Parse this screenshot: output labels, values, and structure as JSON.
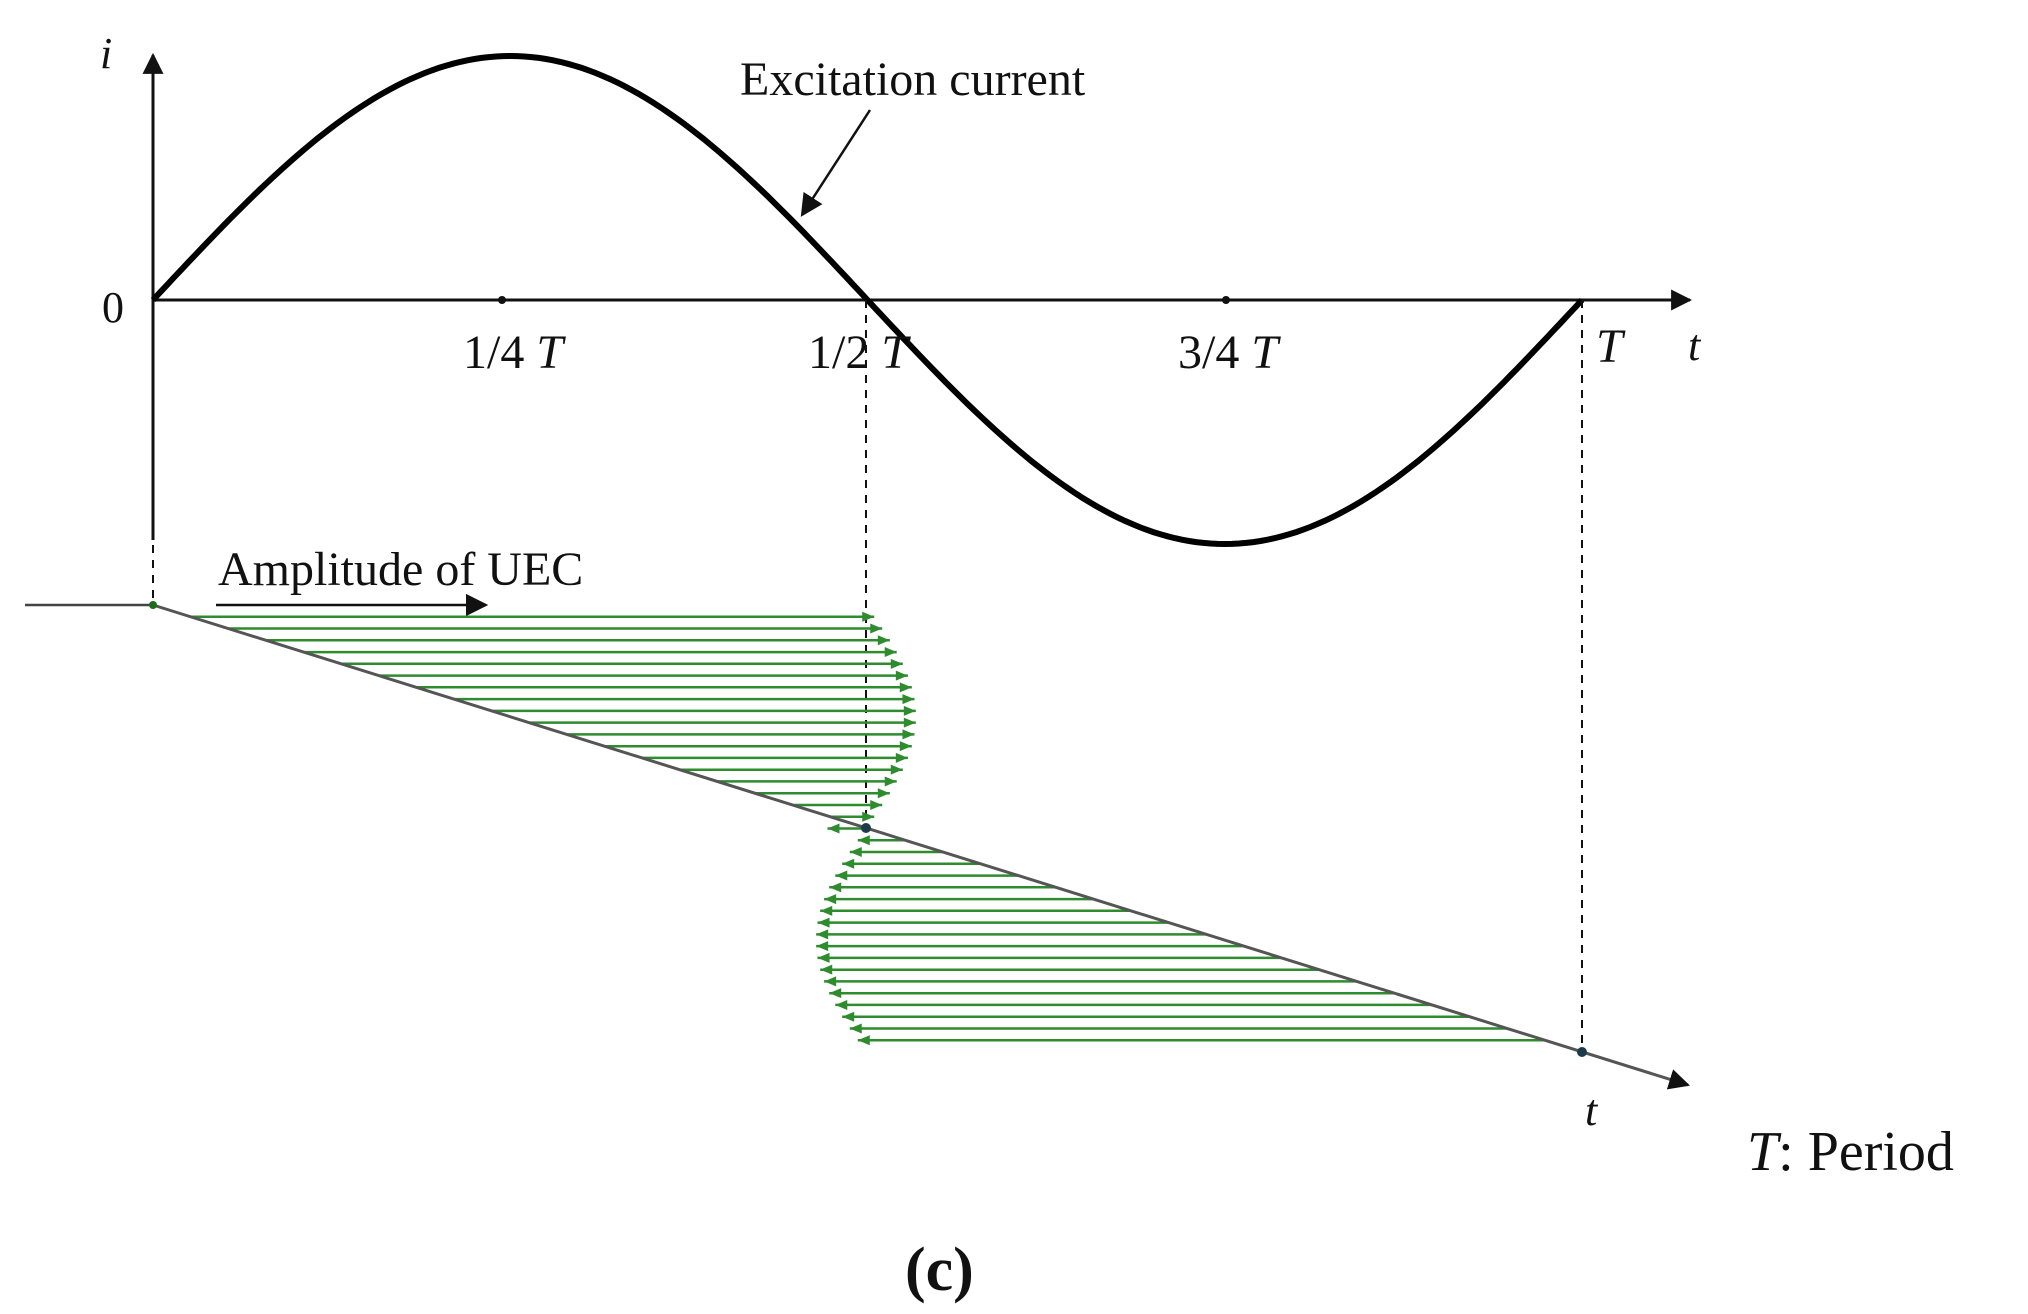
{
  "figure": {
    "panel_label": "(c)",
    "y_axis_label": "i",
    "t_axis_label": "t",
    "t_axis_label_bottom": "t",
    "origin_label": "0",
    "curve_annotation": "Excitation current",
    "uec_label": "Amplitude of UEC",
    "tick_labels": [
      {
        "num": "1/4",
        "sym": "T"
      },
      {
        "num": "1/2",
        "sym": "T"
      },
      {
        "num": "3/4",
        "sym": "T"
      },
      {
        "num": "",
        "sym": "T"
      }
    ],
    "legend": {
      "sym": "T",
      "text": ": Period"
    }
  },
  "colors": {
    "ink": "#111111",
    "arrows": "#2e8b2e",
    "axis_diag": "#555555"
  },
  "chart_data": {
    "type": "line",
    "title": "",
    "xlabel": "t",
    "ylabel": "i",
    "x_ticks": [
      "1/4 T",
      "1/2 T",
      "3/4 T",
      "T"
    ],
    "series": [
      {
        "name": "Excitation current",
        "function": "sine",
        "x": [
          0,
          0.25,
          0.5,
          0.75,
          1
        ],
        "y": [
          0,
          1,
          0,
          -1,
          0
        ]
      }
    ]
  }
}
